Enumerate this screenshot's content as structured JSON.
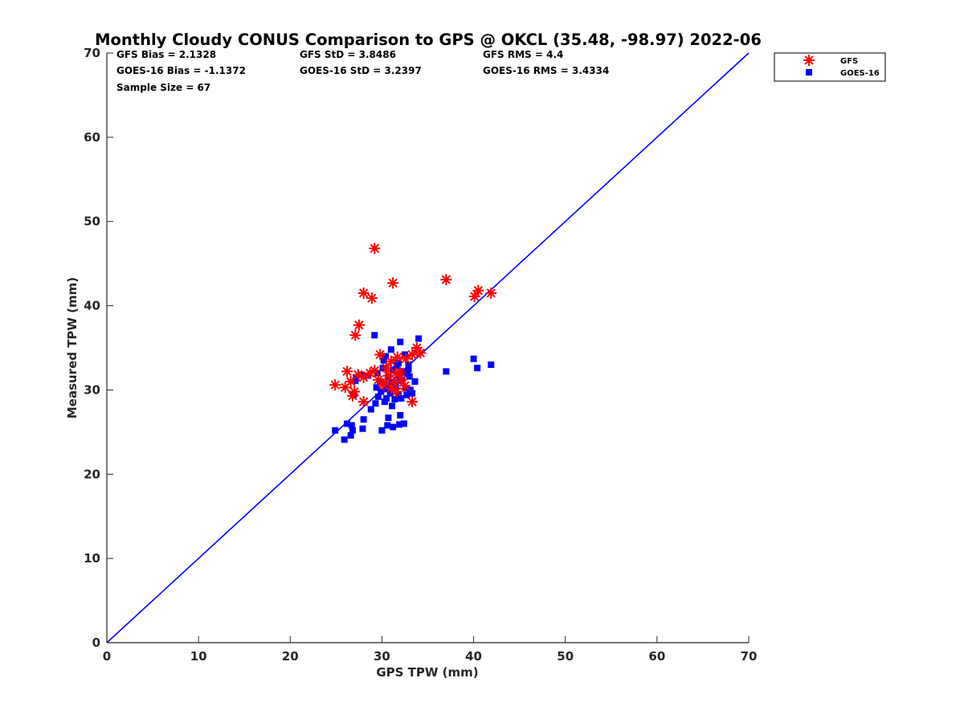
{
  "chart_data": {
    "type": "scatter",
    "title": "Monthly Cloudy CONUS Comparison to GPS @ OKCL (35.48, -98.97) 2022-06",
    "xlabel": "GPS TPW (mm)",
    "ylabel": "Measured TPW (mm)",
    "xlim": [
      0,
      70
    ],
    "ylim": [
      0,
      70
    ],
    "xticks": [
      "0",
      "10",
      "20",
      "30",
      "40",
      "50",
      "60",
      "70"
    ],
    "yticks": [
      "0",
      "10",
      "20",
      "30",
      "40",
      "50",
      "60",
      "70"
    ],
    "grid": false,
    "legend_position": "outside top-right",
    "stats": {
      "gfs_bias": "GFS Bias = 2.1328",
      "gfs_std": "GFS StD = 3.8486",
      "gfs_rms": "GFS RMS = 4.4",
      "goes_bias": "GOES-16 Bias = -1.1372",
      "goes_std": "GOES-16 StD = 3.2397",
      "goes_rms": "GOES-16 RMS = 3.4334",
      "sample_size": "Sample Size = 67"
    },
    "reference_line": {
      "x": [
        0,
        70
      ],
      "y": [
        0,
        70
      ],
      "color": "#0000ff"
    },
    "series": [
      {
        "name": "GFS",
        "marker": "asterisk",
        "color": "#ff0000",
        "points": [
          [
            29.2,
            46.8
          ],
          [
            31.2,
            42.7
          ],
          [
            37.0,
            43.1
          ],
          [
            28.0,
            41.5
          ],
          [
            28.9,
            40.9
          ],
          [
            40.5,
            41.8
          ],
          [
            40.1,
            41.1
          ],
          [
            41.9,
            41.5
          ],
          [
            27.5,
            37.7
          ],
          [
            27.1,
            36.5
          ],
          [
            33.8,
            35.0
          ],
          [
            34.2,
            34.4
          ],
          [
            33.3,
            34.2
          ],
          [
            32.6,
            33.7
          ],
          [
            31.7,
            33.9
          ],
          [
            31.0,
            33.4
          ],
          [
            29.8,
            34.2
          ],
          [
            30.5,
            32.6
          ],
          [
            29.2,
            32.3
          ],
          [
            28.7,
            32.0
          ],
          [
            32.0,
            32.1
          ],
          [
            31.5,
            32.0
          ],
          [
            26.2,
            32.2
          ],
          [
            30.7,
            31.7
          ],
          [
            29.6,
            31.2
          ],
          [
            26.6,
            31.0
          ],
          [
            27.4,
            31.8
          ],
          [
            28.0,
            31.5
          ],
          [
            31.3,
            30.9
          ],
          [
            32.5,
            30.5
          ],
          [
            30.1,
            30.6
          ],
          [
            31.0,
            30.2
          ],
          [
            31.6,
            29.8
          ],
          [
            24.9,
            30.6
          ],
          [
            26.0,
            30.3
          ],
          [
            27.0,
            29.8
          ],
          [
            26.8,
            29.3
          ],
          [
            28.0,
            28.6
          ],
          [
            33.3,
            28.6
          ],
          [
            30.4,
            30.9
          ],
          [
            32.1,
            31.2
          ]
        ]
      },
      {
        "name": "GOES-16",
        "marker": "square",
        "color": "#0000ff",
        "points": [
          [
            29.2,
            36.5
          ],
          [
            34.0,
            36.1
          ],
          [
            32.0,
            35.7
          ],
          [
            31.0,
            34.8
          ],
          [
            30.4,
            34.0
          ],
          [
            32.5,
            34.2
          ],
          [
            30.2,
            33.5
          ],
          [
            31.8,
            33.2
          ],
          [
            32.9,
            33.0
          ],
          [
            30.1,
            32.6
          ],
          [
            31.2,
            32.4
          ],
          [
            32.4,
            32.2
          ],
          [
            29.5,
            32.0
          ],
          [
            30.7,
            31.6
          ],
          [
            31.9,
            31.4
          ],
          [
            32.8,
            31.9
          ],
          [
            33.0,
            31.6
          ],
          [
            28.5,
            31.7
          ],
          [
            27.8,
            31.8
          ],
          [
            27.2,
            31.4
          ],
          [
            29.8,
            31.0
          ],
          [
            31.1,
            30.9
          ],
          [
            32.2,
            31.1
          ],
          [
            33.6,
            31.0
          ],
          [
            29.4,
            30.3
          ],
          [
            30.6,
            30.1
          ],
          [
            31.5,
            30.4
          ],
          [
            32.6,
            30.2
          ],
          [
            33.1,
            30.0
          ],
          [
            29.9,
            29.8
          ],
          [
            30.9,
            29.6
          ],
          [
            31.8,
            29.5
          ],
          [
            32.7,
            29.4
          ],
          [
            33.3,
            29.6
          ],
          [
            29.6,
            29.2
          ],
          [
            30.5,
            29.0
          ],
          [
            31.4,
            28.9
          ],
          [
            32.1,
            29.0
          ],
          [
            29.3,
            28.4
          ],
          [
            31.1,
            28.1
          ],
          [
            28.8,
            27.7
          ],
          [
            30.7,
            26.7
          ],
          [
            32.0,
            27.0
          ],
          [
            28.0,
            26.5
          ],
          [
            26.2,
            26.0
          ],
          [
            26.7,
            25.8
          ],
          [
            30.6,
            25.8
          ],
          [
            31.9,
            25.9
          ],
          [
            32.4,
            26.0
          ],
          [
            31.2,
            25.6
          ],
          [
            30.0,
            25.2
          ],
          [
            27.9,
            25.4
          ],
          [
            26.8,
            25.2
          ],
          [
            24.9,
            25.2
          ],
          [
            26.6,
            24.6
          ],
          [
            25.9,
            24.1
          ],
          [
            27.1,
            31.1
          ],
          [
            26.9,
            29.4
          ],
          [
            37.0,
            32.2
          ],
          [
            40.0,
            33.7
          ],
          [
            40.4,
            32.6
          ],
          [
            41.9,
            33.0
          ],
          [
            31.6,
            32.9
          ],
          [
            30.3,
            28.6
          ],
          [
            32.9,
            32.5
          ]
        ]
      }
    ]
  }
}
